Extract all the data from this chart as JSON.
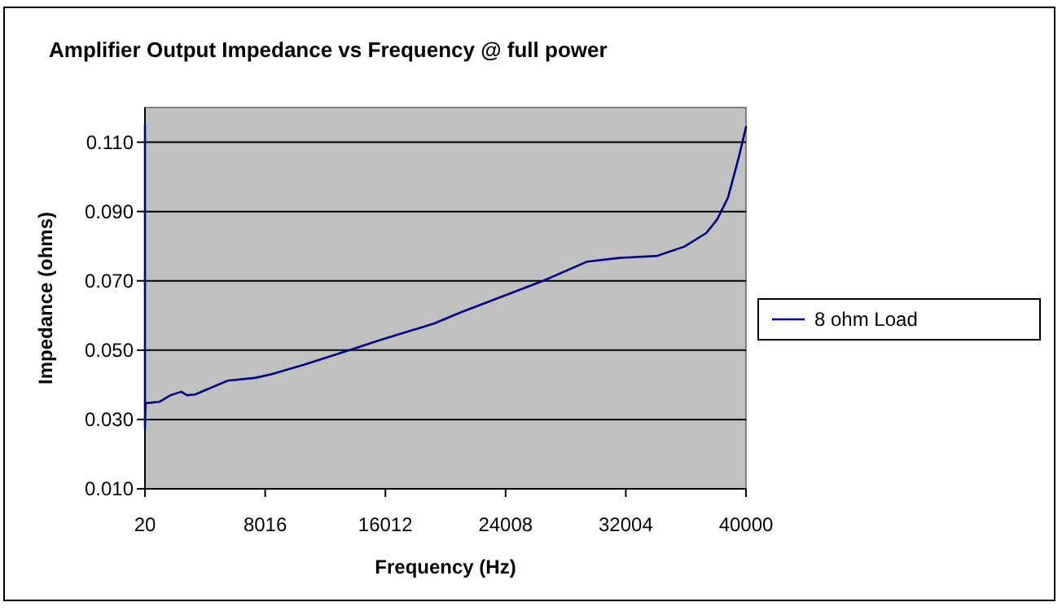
{
  "chart_data": {
    "type": "line",
    "title": "Amplifier Output Impedance vs Frequency @ full power",
    "xlabel": "Frequency (Hz)",
    "ylabel": "Impedance (ohms)",
    "x": [
      20,
      20,
      60,
      997,
      1720,
      2444,
      2806,
      3350,
      5520,
      7330,
      8410,
      10585,
      13840,
      15650,
      19270,
      21080,
      26500,
      29400,
      31570,
      34100,
      35910,
      37360,
      38080,
      38800,
      39530,
      40000
    ],
    "series": [
      {
        "name": "8 ohm Load",
        "color": "#000080",
        "values": [
          0.115,
          0.0273,
          0.0347,
          0.0351,
          0.037,
          0.038,
          0.037,
          0.0372,
          0.0412,
          0.042,
          0.043,
          0.0458,
          0.0503,
          0.0529,
          0.0577,
          0.061,
          0.07,
          0.0755,
          0.0766,
          0.0772,
          0.0799,
          0.0838,
          0.0877,
          0.094,
          0.1058,
          0.1144
        ]
      }
    ],
    "xlim": [
      20,
      40000
    ],
    "xticks": [
      20,
      8016,
      16012,
      24008,
      32004,
      40000
    ],
    "ylim": [
      0.01,
      0.12
    ],
    "yticks": [
      {
        "value": 0.01,
        "label": "0.010"
      },
      {
        "value": 0.03,
        "label": "0.030"
      },
      {
        "value": 0.05,
        "label": "0.050"
      },
      {
        "value": 0.07,
        "label": "0.070"
      },
      {
        "value": 0.09,
        "label": "0.090"
      },
      {
        "value": 0.11,
        "label": "0.110"
      }
    ],
    "grid": "y",
    "legend": "right",
    "marker": "none",
    "line_style": "solid"
  }
}
